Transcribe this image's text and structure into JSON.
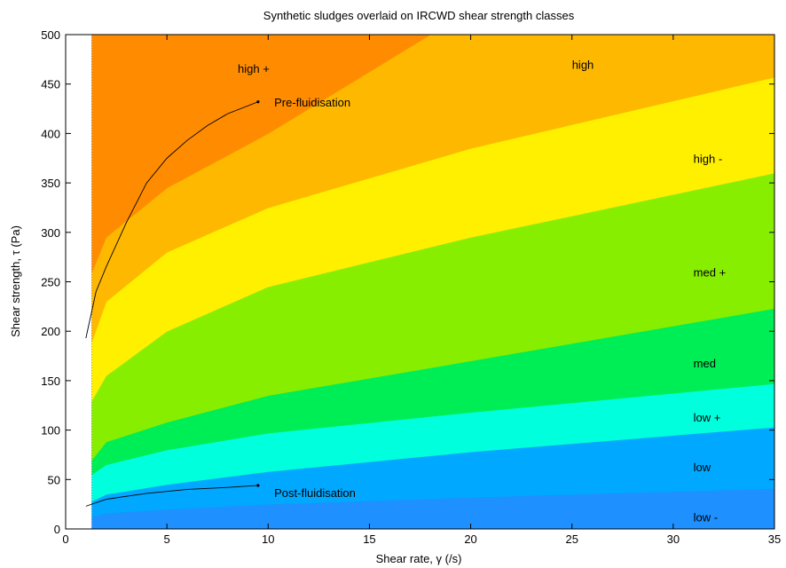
{
  "chart_data": {
    "type": "area",
    "title": "Synthetic sludges overlaid on IRCWD shear strength classes",
    "xlabel": "Shear rate, γ (/s)",
    "ylabel": "Shear strength, τ (Pa)",
    "xlim": [
      0,
      35
    ],
    "ylim": [
      0,
      500
    ],
    "xticks": [
      0,
      5,
      10,
      15,
      20,
      25,
      30,
      35
    ],
    "yticks": [
      0,
      50,
      100,
      150,
      200,
      250,
      300,
      350,
      400,
      450,
      500
    ],
    "x_start": 1.3,
    "grid": false,
    "bands": [
      {
        "label": "low -",
        "color": "#1E90FF",
        "lower": [
          [
            1.3,
            0
          ],
          [
            35,
            0
          ]
        ],
        "upper": [
          [
            1.3,
            12
          ],
          [
            2,
            16
          ],
          [
            5,
            20
          ],
          [
            10,
            25
          ],
          [
            20,
            32
          ],
          [
            35,
            41
          ]
        ],
        "label_pos": [
          31,
          12
        ]
      },
      {
        "label": "low",
        "color": "#00A9FF",
        "lower": [
          [
            1.3,
            12
          ],
          [
            2,
            16
          ],
          [
            5,
            20
          ],
          [
            10,
            25
          ],
          [
            20,
            32
          ],
          [
            35,
            41
          ]
        ],
        "upper": [
          [
            1.3,
            28
          ],
          [
            2,
            35
          ],
          [
            5,
            45
          ],
          [
            10,
            58
          ],
          [
            20,
            78
          ],
          [
            35,
            103
          ]
        ],
        "label_pos": [
          31,
          63
        ]
      },
      {
        "label": "low +",
        "color": "#00FFDD",
        "lower": [
          [
            1.3,
            28
          ],
          [
            2,
            35
          ],
          [
            5,
            45
          ],
          [
            10,
            58
          ],
          [
            20,
            78
          ],
          [
            35,
            103
          ]
        ],
        "upper": [
          [
            1.3,
            55
          ],
          [
            2,
            65
          ],
          [
            5,
            80
          ],
          [
            10,
            97
          ],
          [
            20,
            118
          ],
          [
            35,
            147
          ]
        ],
        "label_pos": [
          31,
          113
        ]
      },
      {
        "label": "med",
        "color": "#00EE55",
        "lower": [
          [
            1.3,
            55
          ],
          [
            2,
            65
          ],
          [
            5,
            80
          ],
          [
            10,
            97
          ],
          [
            20,
            118
          ],
          [
            35,
            147
          ]
        ],
        "upper": [
          [
            1.3,
            70
          ],
          [
            2,
            88
          ],
          [
            5,
            108
          ],
          [
            10,
            135
          ],
          [
            20,
            170
          ],
          [
            35,
            223
          ]
        ],
        "label_pos": [
          31,
          168
        ]
      },
      {
        "label": "med +",
        "color": "#88EE00",
        "lower": [
          [
            1.3,
            70
          ],
          [
            2,
            88
          ],
          [
            5,
            108
          ],
          [
            10,
            135
          ],
          [
            20,
            170
          ],
          [
            35,
            223
          ]
        ],
        "upper": [
          [
            1.3,
            130
          ],
          [
            2,
            155
          ],
          [
            5,
            200
          ],
          [
            10,
            245
          ],
          [
            20,
            295
          ],
          [
            35,
            360
          ]
        ],
        "label_pos": [
          31,
          260
        ]
      },
      {
        "label": "high -",
        "color": "#FFF000",
        "lower": [
          [
            1.3,
            130
          ],
          [
            2,
            155
          ],
          [
            5,
            200
          ],
          [
            10,
            245
          ],
          [
            20,
            295
          ],
          [
            35,
            360
          ]
        ],
        "upper": [
          [
            1.3,
            190
          ],
          [
            2,
            230
          ],
          [
            5,
            280
          ],
          [
            10,
            325
          ],
          [
            20,
            385
          ],
          [
            35,
            457
          ]
        ],
        "label_pos": [
          31,
          375
        ]
      },
      {
        "label": "high",
        "color": "#FFB800",
        "lower": [
          [
            1.3,
            190
          ],
          [
            2,
            230
          ],
          [
            5,
            280
          ],
          [
            10,
            325
          ],
          [
            20,
            385
          ],
          [
            35,
            457
          ]
        ],
        "upper": [
          [
            1.3,
            260
          ],
          [
            2,
            295
          ],
          [
            5,
            345
          ],
          [
            10,
            400
          ],
          [
            18,
            500
          ],
          [
            35,
            500
          ]
        ],
        "label_pos": [
          25,
          470
        ]
      },
      {
        "label": "high +",
        "color": "#FF8C00",
        "lower": [
          [
            1.3,
            260
          ],
          [
            2,
            295
          ],
          [
            5,
            345
          ],
          [
            10,
            400
          ],
          [
            18,
            500
          ]
        ],
        "upper": [
          [
            1.3,
            500
          ],
          [
            18,
            500
          ]
        ],
        "label_pos": [
          8.5,
          466
        ]
      }
    ],
    "series": [
      {
        "name": "Pre-fluidisation",
        "points": [
          [
            1,
            193
          ],
          [
            1.5,
            240
          ],
          [
            2,
            265
          ],
          [
            3,
            310
          ],
          [
            4,
            350
          ],
          [
            5,
            375
          ],
          [
            6,
            393
          ],
          [
            7,
            408
          ],
          [
            8,
            420
          ],
          [
            9.5,
            432
          ]
        ],
        "label_pos": [
          10.3,
          432
        ]
      },
      {
        "name": "Post-fluidisation",
        "points": [
          [
            1,
            23
          ],
          [
            2,
            30
          ],
          [
            3,
            33
          ],
          [
            4,
            36
          ],
          [
            5,
            38
          ],
          [
            6,
            40
          ],
          [
            7,
            41
          ],
          [
            8,
            42
          ],
          [
            9.5,
            44
          ]
        ],
        "label_pos": [
          10.3,
          37
        ]
      }
    ]
  }
}
